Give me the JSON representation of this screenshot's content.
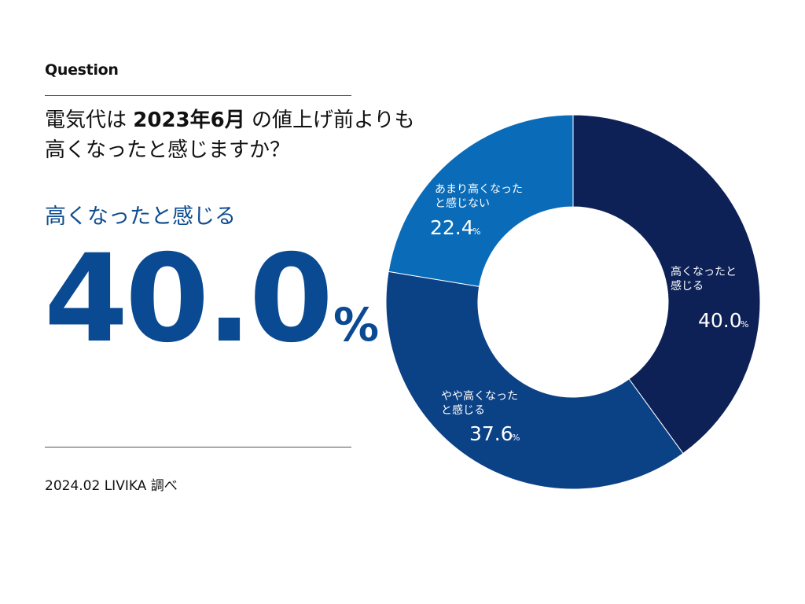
{
  "header": {
    "question_label": "Question",
    "question_line1_a": "電気代は ",
    "question_line1_b": "2023年6月",
    "question_line1_c": " の値上げ前よりも",
    "question_line2": "高くなったと感じますか？"
  },
  "highlight": {
    "label": "高くなったと感じる",
    "value": "40.0",
    "unit": "%"
  },
  "footer": {
    "source": "2024.02 LIVIKA 調べ"
  },
  "colors": {
    "accent": "#0a4a92",
    "seg1": "#0d2157",
    "seg2": "#0b4185",
    "seg3": "#0a6bb8"
  },
  "chart_data": {
    "type": "pie",
    "donut": true,
    "categories": [
      "高くなったと感じる",
      "やや高くなったと感じる",
      "あまり高くなったと感じない"
    ],
    "values": [
      40.0,
      37.6,
      22.4
    ],
    "unit": "%",
    "segments": [
      {
        "label_line1": "高くなったと",
        "label_line2": "感じる",
        "value": 40.0,
        "value_text": "40.0",
        "unit": "%",
        "color": "#0d2157"
      },
      {
        "label_line1": "やや高くなった",
        "label_line2": "と感じる",
        "value": 37.6,
        "value_text": "37.6",
        "unit": "%",
        "color": "#0b4185"
      },
      {
        "label_line1": "あまり高くなった",
        "label_line2": "と感じない",
        "value": 22.4,
        "value_text": "22.4",
        "unit": "%",
        "color": "#0a6bb8"
      }
    ]
  }
}
